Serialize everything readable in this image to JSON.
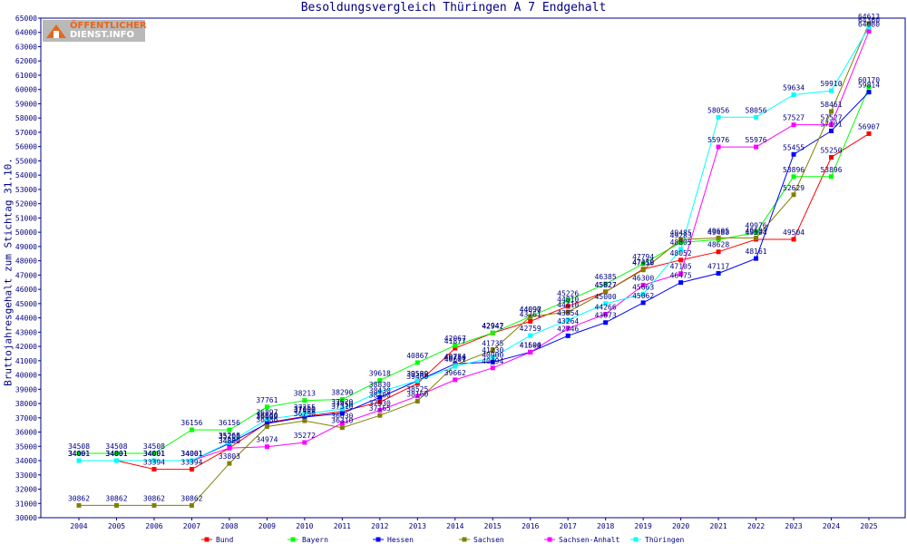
{
  "logo": {
    "line1": "ÖFFENTLICHER",
    "line2": "DIENST.INFO",
    "color": "#e8661a"
  },
  "chart_data": {
    "type": "line",
    "title": "Besoldungsvergleich Thüringen A 7 Endgehalt",
    "xlabel": "",
    "ylabel": "Bruttojahresgehalt zum Stichtag 31.10.",
    "ylim": [
      30000,
      65000
    ],
    "ytick_step": 1000,
    "grid": false,
    "legend_position": "bottom",
    "categories": [
      "2004",
      "2005",
      "2006",
      "2007",
      "2008",
      "2009",
      "2010",
      "2011",
      "2012",
      "2013",
      "2014",
      "2015",
      "2016",
      "2017",
      "2018",
      "2019",
      "2020",
      "2021",
      "2022",
      "2023",
      "2024",
      "2025"
    ],
    "series": [
      {
        "name": "Bund",
        "color": "#ff0000",
        "values": [
          34001,
          34001,
          33394,
          33394,
          34880,
          36660,
          37100,
          37450,
          38100,
          39400,
          41877,
          42942,
          43761,
          44810,
          45827,
          47410,
          48052,
          48628,
          49504,
          49504,
          55250,
          56907
        ]
      },
      {
        "name": "Bayern",
        "color": "#00ff00",
        "values": [
          34508,
          34508,
          34508,
          36156,
          36156,
          37761,
          38213,
          38290,
          39618,
          40867,
          42067,
          42947,
          44097,
          45226,
          46385,
          47794,
          49283,
          49488,
          49976,
          53896,
          53896,
          60170
        ]
      },
      {
        "name": "Hessen",
        "color": "#0000ff",
        "values": [
          34001,
          34001,
          34001,
          34001,
          35200,
          36600,
          37050,
          37310,
          38430,
          39590,
          40784,
          40900,
          41604,
          42746,
          43673,
          45062,
          46475,
          47117,
          48161,
          55455,
          57101,
          59814
        ]
      },
      {
        "name": "Sachsen",
        "color": "#808000",
        "values": [
          30862,
          30862,
          30862,
          30862,
          33803,
          36386,
          36790,
          36310,
          37165,
          38160,
          40710,
          41735,
          44090,
          44410,
          45827,
          47358,
          49485,
          49605,
          49603,
          52629,
          58461,
          64613
        ]
      },
      {
        "name": "Sachsen-Anhalt",
        "color": "#ff00ff",
        "values": [
          34001,
          34001,
          34001,
          34001,
          34880,
          34974,
          35272,
          36630,
          37530,
          38525,
          39662,
          40494,
          41590,
          43264,
          44266,
          46300,
          47105,
          55976,
          55976,
          57527,
          57527,
          64080
        ]
      },
      {
        "name": "Thüringen",
        "color": "#00ffff",
        "values": [
          34001,
          34001,
          34001,
          34001,
          35268,
          36897,
          37255,
          37620,
          38830,
          39589,
          40601,
          41230,
          42759,
          43854,
          45000,
          45663,
          48805,
          58056,
          58056,
          59634,
          59910,
          64360
        ]
      }
    ]
  }
}
